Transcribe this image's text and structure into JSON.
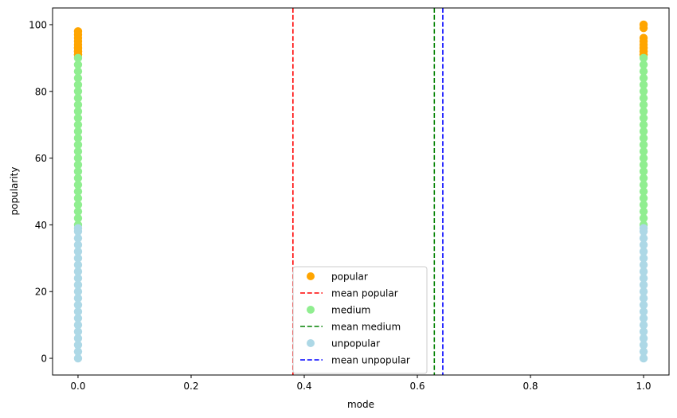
{
  "chart_data": {
    "type": "scatter",
    "title": "",
    "xlabel": "mode",
    "ylabel": "popularity",
    "xlim": [
      -0.045,
      1.045
    ],
    "ylim": [
      -5,
      105
    ],
    "xticks": [
      0.0,
      0.2,
      0.4,
      0.6,
      0.8,
      1.0
    ],
    "xtick_labels": [
      "0.0",
      "0.2",
      "0.4",
      "0.6",
      "0.8",
      "1.0"
    ],
    "yticks": [
      0,
      20,
      40,
      60,
      80,
      100
    ],
    "ytick_labels": [
      "0",
      "20",
      "40",
      "60",
      "80",
      "100"
    ],
    "grid": false,
    "legend_position": "bottom-center",
    "series": [
      {
        "name": "popular",
        "kind": "scatter",
        "color": "#ffa500",
        "x": [
          0,
          0,
          0,
          0,
          0,
          0,
          0,
          0,
          0,
          0,
          0,
          1,
          1,
          1,
          1,
          1,
          1,
          1,
          1,
          1,
          1,
          1
        ],
        "y": [
          91,
          92,
          93,
          94,
          95,
          96,
          97,
          98,
          91,
          92,
          93,
          91,
          92,
          93,
          94,
          95,
          96,
          99,
          100,
          91,
          92,
          93
        ]
      },
      {
        "name": "medium",
        "kind": "scatter",
        "color": "#90ee90",
        "x": [
          0,
          0,
          0,
          0,
          0,
          0,
          0,
          0,
          0,
          0,
          0,
          0,
          0,
          0,
          0,
          0,
          0,
          0,
          0,
          0,
          0,
          0,
          0,
          0,
          0,
          0,
          1,
          1,
          1,
          1,
          1,
          1,
          1,
          1,
          1,
          1,
          1,
          1,
          1,
          1,
          1,
          1,
          1,
          1,
          1,
          1,
          1,
          1,
          1,
          1,
          1,
          1
        ],
        "y": [
          40,
          42,
          44,
          46,
          48,
          50,
          52,
          54,
          56,
          58,
          60,
          62,
          64,
          66,
          68,
          70,
          72,
          74,
          76,
          78,
          80,
          82,
          84,
          86,
          88,
          90,
          40,
          42,
          44,
          46,
          48,
          50,
          52,
          54,
          56,
          58,
          60,
          62,
          64,
          66,
          68,
          70,
          72,
          74,
          76,
          78,
          80,
          82,
          84,
          86,
          88,
          90
        ]
      },
      {
        "name": "unpopular",
        "kind": "scatter",
        "color": "#add8e6",
        "x": [
          0,
          0,
          0,
          0,
          0,
          0,
          0,
          0,
          0,
          0,
          0,
          0,
          0,
          0,
          0,
          0,
          0,
          0,
          0,
          0,
          0,
          1,
          1,
          1,
          1,
          1,
          1,
          1,
          1,
          1,
          1,
          1,
          1,
          1,
          1,
          1,
          1,
          1,
          1,
          1,
          1,
          1
        ],
        "y": [
          0,
          2,
          4,
          6,
          8,
          10,
          12,
          14,
          16,
          18,
          20,
          22,
          24,
          26,
          28,
          30,
          32,
          34,
          36,
          38,
          39,
          0,
          2,
          4,
          6,
          8,
          10,
          12,
          14,
          16,
          18,
          20,
          22,
          24,
          26,
          28,
          30,
          32,
          34,
          36,
          38,
          39
        ]
      }
    ],
    "vlines": [
      {
        "name": "mean popular",
        "x": 0.38,
        "color": "#ff0000",
        "style": "dashed"
      },
      {
        "name": "mean medium",
        "x": 0.63,
        "color": "#008000",
        "style": "dashed"
      },
      {
        "name": "mean unpopular",
        "x": 0.645,
        "color": "#0000ff",
        "style": "dashed"
      }
    ],
    "legend": [
      {
        "label": "popular",
        "kind": "marker",
        "color": "#ffa500"
      },
      {
        "label": "mean popular",
        "kind": "line",
        "color": "#ff0000"
      },
      {
        "label": "medium",
        "kind": "marker",
        "color": "#90ee90"
      },
      {
        "label": "mean medium",
        "kind": "line",
        "color": "#008000"
      },
      {
        "label": "unpopular",
        "kind": "marker",
        "color": "#add8e6"
      },
      {
        "label": "mean unpopular",
        "kind": "line",
        "color": "#0000ff"
      }
    ]
  }
}
